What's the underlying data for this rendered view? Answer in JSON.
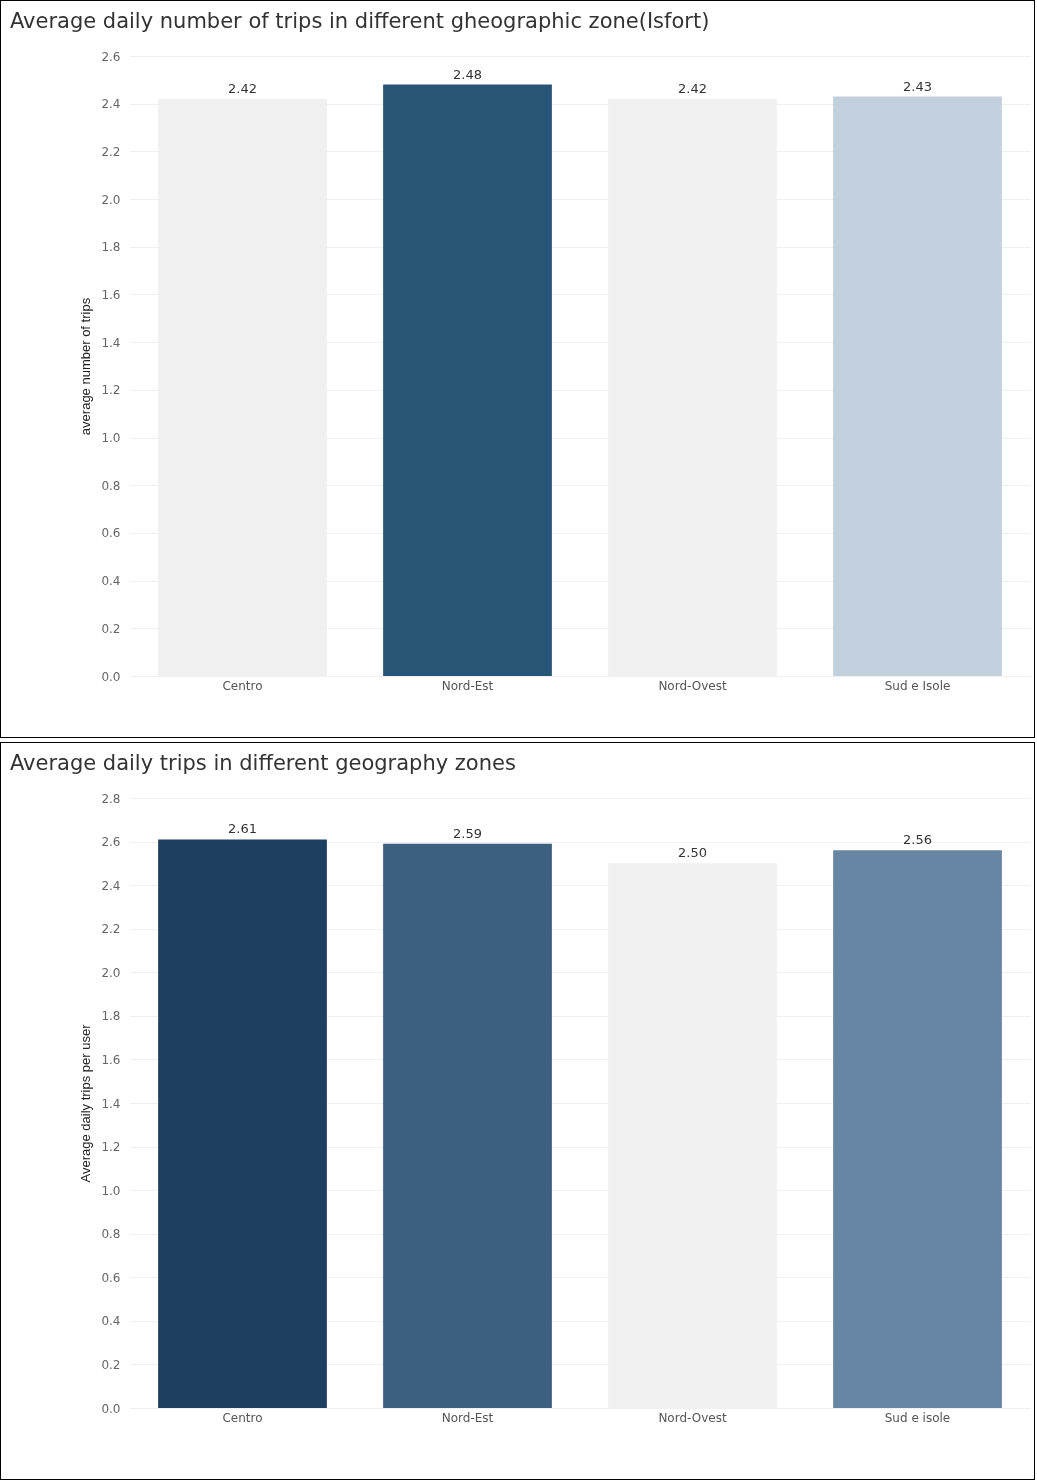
{
  "chart_data": [
    {
      "type": "bar",
      "title": "Average daily number of trips in different gheographic zone(Isfort)",
      "ylabel": "average number of trips",
      "categories": [
        "Centro",
        "Nord-Est",
        "Nord-Ovest",
        "Sud e Isole"
      ],
      "values": [
        2.42,
        2.48,
        2.42,
        2.43
      ],
      "colors": [
        "#f0f0f0",
        "#285476",
        "#f0f0f0",
        "#c2d0de"
      ],
      "value_labels": [
        "2.42",
        "2.48",
        "2.42",
        "2.43"
      ],
      "ylim": [
        0,
        2.6
      ],
      "yticks": [
        {
          "value": 0,
          "label": "0.0"
        },
        {
          "value": 0.2,
          "label": "0.2"
        },
        {
          "value": 0.4,
          "label": "0.4"
        },
        {
          "value": 0.6,
          "label": "0.6"
        },
        {
          "value": 0.8,
          "label": "0.8"
        },
        {
          "value": 1,
          "label": "1.0"
        },
        {
          "value": 1.2,
          "label": "1.2"
        },
        {
          "value": 1.4,
          "label": "1.4"
        },
        {
          "value": 1.6,
          "label": "1.6"
        },
        {
          "value": 1.8,
          "label": "1.8"
        },
        {
          "value": 2,
          "label": "2.0"
        },
        {
          "value": 2.2,
          "label": "2.2"
        },
        {
          "value": 2.4,
          "label": "2.4"
        },
        {
          "value": 2.6,
          "label": "2.6"
        }
      ],
      "grid": "y",
      "legend": false
    },
    {
      "type": "bar",
      "title": "Average daily trips in different geography zones",
      "ylabel": "Average daily trips per user",
      "categories": [
        "Centro",
        "Nord-Est",
        "Nord-Ovest",
        "Sud e isole"
      ],
      "values": [
        2.61,
        2.59,
        2.5,
        2.56
      ],
      "colors": [
        "#1f3f60",
        "#3d5f80",
        "#f0f0f0",
        "#6686a3"
      ],
      "value_labels": [
        "2.61",
        "2.59",
        "2.50",
        "2.56"
      ],
      "ylim": [
        0,
        2.8
      ],
      "yticks": [
        {
          "value": 0,
          "label": "0.0"
        },
        {
          "value": 0.2,
          "label": "0.2"
        },
        {
          "value": 0.4,
          "label": "0.4"
        },
        {
          "value": 0.6,
          "label": "0.6"
        },
        {
          "value": 0.8,
          "label": "0.8"
        },
        {
          "value": 1,
          "label": "1.0"
        },
        {
          "value": 1.2,
          "label": "1.2"
        },
        {
          "value": 1.4,
          "label": "1.4"
        },
        {
          "value": 1.6,
          "label": "1.6"
        },
        {
          "value": 1.8,
          "label": "1.8"
        },
        {
          "value": 2,
          "label": "2.0"
        },
        {
          "value": 2.2,
          "label": "2.2"
        },
        {
          "value": 2.4,
          "label": "2.4"
        },
        {
          "value": 2.6,
          "label": "2.6"
        },
        {
          "value": 2.8,
          "label": "2.8"
        }
      ],
      "grid": "y",
      "legend": false
    }
  ]
}
